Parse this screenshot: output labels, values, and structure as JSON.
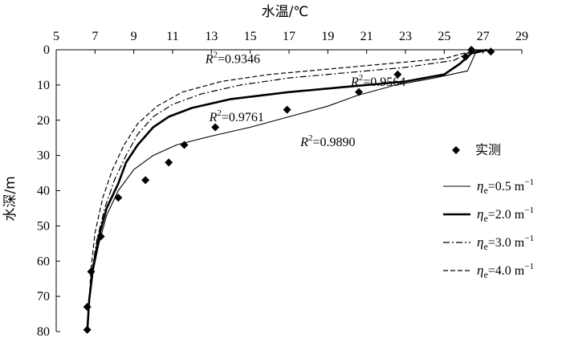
{
  "chart_data": {
    "type": "line",
    "xlabel": "水温/℃",
    "ylabel": "水深/m",
    "xlim": [
      5,
      29
    ],
    "ylim": [
      0,
      80
    ],
    "y_inverted": true,
    "x_axis_position": "top",
    "x_ticks": [
      5,
      7,
      9,
      11,
      13,
      15,
      17,
      19,
      21,
      23,
      25,
      27,
      29
    ],
    "y_ticks": [
      0,
      10,
      20,
      30,
      40,
      50,
      60,
      70,
      80
    ],
    "legend_position": "right",
    "grid": false,
    "observed": {
      "name": "实测",
      "marker": "diamond",
      "points": [
        {
          "temp": 27.4,
          "depth": 0.5
        },
        {
          "temp": 26.4,
          "depth": 0
        },
        {
          "temp": 26.1,
          "depth": 2
        },
        {
          "temp": 22.6,
          "depth": 7
        },
        {
          "temp": 20.6,
          "depth": 12
        },
        {
          "temp": 16.9,
          "depth": 17
        },
        {
          "temp": 13.2,
          "depth": 22
        },
        {
          "temp": 11.6,
          "depth": 27
        },
        {
          "temp": 10.8,
          "depth": 32
        },
        {
          "temp": 9.6,
          "depth": 37
        },
        {
          "temp": 8.2,
          "depth": 42
        },
        {
          "temp": 7.3,
          "depth": 53
        },
        {
          "temp": 6.8,
          "depth": 63
        },
        {
          "temp": 6.6,
          "depth": 73
        },
        {
          "temp": 6.6,
          "depth": 79.5
        }
      ]
    },
    "series": [
      {
        "name_prefix": "η",
        "name_sub": "e",
        "name_suffix": "=0.5 m",
        "name_sup": "−1",
        "style": "thin",
        "points": [
          {
            "temp": 27.4,
            "depth": 0
          },
          {
            "temp": 26.6,
            "depth": 1
          },
          {
            "temp": 26.2,
            "depth": 6
          },
          {
            "temp": 24.5,
            "depth": 8
          },
          {
            "temp": 22.5,
            "depth": 10
          },
          {
            "temp": 20.5,
            "depth": 13
          },
          {
            "temp": 19.0,
            "depth": 16
          },
          {
            "temp": 17.0,
            "depth": 19
          },
          {
            "temp": 15.0,
            "depth": 22
          },
          {
            "temp": 13.0,
            "depth": 24.5
          },
          {
            "temp": 11.2,
            "depth": 27
          },
          {
            "temp": 10.0,
            "depth": 30
          },
          {
            "temp": 9.0,
            "depth": 34
          },
          {
            "temp": 8.2,
            "depth": 40
          },
          {
            "temp": 7.6,
            "depth": 47
          },
          {
            "temp": 7.2,
            "depth": 55
          },
          {
            "temp": 6.9,
            "depth": 63
          },
          {
            "temp": 6.7,
            "depth": 72
          },
          {
            "temp": 6.6,
            "depth": 80
          }
        ]
      },
      {
        "name_prefix": "η",
        "name_sub": "e",
        "name_suffix": "=2.0 m",
        "name_sup": "−1",
        "style": "thick",
        "points": [
          {
            "temp": 27.2,
            "depth": 0
          },
          {
            "temp": 26.4,
            "depth": 1
          },
          {
            "temp": 25.8,
            "depth": 4
          },
          {
            "temp": 25.0,
            "depth": 7
          },
          {
            "temp": 23.0,
            "depth": 9
          },
          {
            "temp": 20.0,
            "depth": 10.5
          },
          {
            "temp": 17.0,
            "depth": 12
          },
          {
            "temp": 14.0,
            "depth": 14
          },
          {
            "temp": 12.0,
            "depth": 16.5
          },
          {
            "temp": 10.8,
            "depth": 19
          },
          {
            "temp": 10.0,
            "depth": 22
          },
          {
            "temp": 9.2,
            "depth": 27
          },
          {
            "temp": 8.6,
            "depth": 32
          },
          {
            "temp": 8.2,
            "depth": 38
          },
          {
            "temp": 7.6,
            "depth": 45
          },
          {
            "temp": 7.2,
            "depth": 53
          },
          {
            "temp": 6.9,
            "depth": 62
          },
          {
            "temp": 6.7,
            "depth": 71
          },
          {
            "temp": 6.6,
            "depth": 80
          }
        ]
      },
      {
        "name_prefix": "η",
        "name_sub": "e",
        "name_suffix": "=3.0 m",
        "name_sup": "−1",
        "style": "dashdot",
        "points": [
          {
            "temp": 27.0,
            "depth": 0
          },
          {
            "temp": 26.2,
            "depth": 1
          },
          {
            "temp": 25.5,
            "depth": 3
          },
          {
            "temp": 23.0,
            "depth": 5
          },
          {
            "temp": 20.0,
            "depth": 6.5
          },
          {
            "temp": 17.0,
            "depth": 8
          },
          {
            "temp": 14.5,
            "depth": 10
          },
          {
            "temp": 12.5,
            "depth": 12.5
          },
          {
            "temp": 11.0,
            "depth": 15.5
          },
          {
            "temp": 10.0,
            "depth": 19
          },
          {
            "temp": 9.2,
            "depth": 24
          },
          {
            "temp": 8.6,
            "depth": 30
          },
          {
            "temp": 8.0,
            "depth": 37
          },
          {
            "temp": 7.5,
            "depth": 45
          },
          {
            "temp": 7.1,
            "depth": 54
          },
          {
            "temp": 6.8,
            "depth": 64
          },
          {
            "temp": 6.7,
            "depth": 72
          },
          {
            "temp": 6.6,
            "depth": 80
          }
        ]
      },
      {
        "name_prefix": "η",
        "name_sub": "e",
        "name_suffix": "=4.0 m",
        "name_sup": "−1",
        "style": "dashed",
        "points": [
          {
            "temp": 26.8,
            "depth": 0
          },
          {
            "temp": 26.0,
            "depth": 1
          },
          {
            "temp": 25.0,
            "depth": 2.5
          },
          {
            "temp": 22.0,
            "depth": 4
          },
          {
            "temp": 19.0,
            "depth": 5.5
          },
          {
            "temp": 16.0,
            "depth": 7
          },
          {
            "temp": 13.5,
            "depth": 9
          },
          {
            "temp": 11.5,
            "depth": 12
          },
          {
            "temp": 10.2,
            "depth": 16
          },
          {
            "temp": 9.2,
            "depth": 21
          },
          {
            "temp": 8.5,
            "depth": 27
          },
          {
            "temp": 7.9,
            "depth": 34
          },
          {
            "temp": 7.4,
            "depth": 42
          },
          {
            "temp": 7.0,
            "depth": 52
          },
          {
            "temp": 6.8,
            "depth": 62
          },
          {
            "temp": 6.7,
            "depth": 71
          },
          {
            "temp": 6.6,
            "depth": 80
          }
        ]
      }
    ],
    "annotations": [
      {
        "r_label": "R",
        "r_sup": "2",
        "value_text": "=0.9346",
        "temp": 14.1,
        "depth": 3.8
      },
      {
        "r_label": "R",
        "r_sup": "2",
        "value_text": "=0.9564",
        "temp": 21.6,
        "depth": 10.3
      },
      {
        "r_label": "R",
        "r_sup": "2",
        "value_text": "=0.9761",
        "temp": 14.3,
        "depth": 20.3
      },
      {
        "r_label": "R",
        "r_sup": "2",
        "value_text": "=0.9890",
        "temp": 19.0,
        "depth": 27.4
      }
    ]
  }
}
